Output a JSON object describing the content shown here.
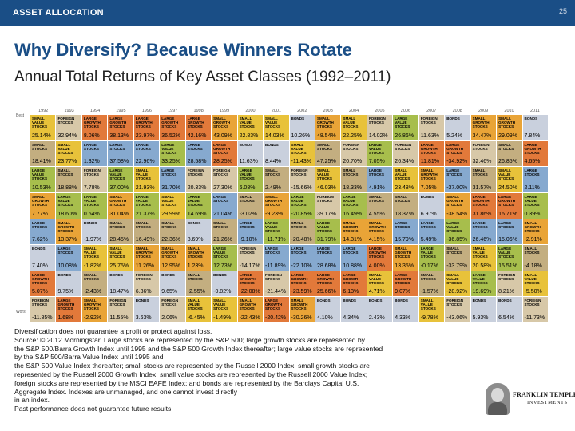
{
  "header": {
    "section_label": "ASSET ALLOCATION",
    "page_number": "25"
  },
  "title": "Why Diversify? Because Winners Rotate",
  "subtitle": "Annual Total Returns of Key Asset Classes (1992–2011)",
  "axis": {
    "best": "Best",
    "worst": "Worst"
  },
  "classes": {
    "SV": {
      "name": "SMALL VALUE STOCKS",
      "color": "#e8c23a"
    },
    "SG": {
      "name": "SMALL GROWTH STOCKS",
      "color": "#e9a437"
    },
    "LV": {
      "name": "LARGE VALUE STOCKS",
      "color": "#a7be4c"
    },
    "LG": {
      "name": "LARGE GROWTH STOCKS",
      "color": "#e2793a"
    },
    "LS": {
      "name": "LARGE STOCKS",
      "color": "#86a9cf"
    },
    "SS": {
      "name": "SMALL STOCKS",
      "color": "#c3ae80"
    },
    "FS": {
      "name": "FOREIGN STOCKS",
      "color": "#d7c8a8"
    },
    "BD": {
      "name": "BONDS",
      "color": "#c9d0dd"
    }
  },
  "chart_data": {
    "type": "table",
    "years": [
      "1992",
      "1993",
      "1994",
      "1995",
      "1996",
      "1997",
      "1998",
      "1999",
      "2000",
      "2001",
      "2002",
      "2003",
      "2004",
      "2005",
      "2006",
      "2007",
      "2008",
      "2009",
      "2010",
      "2011"
    ],
    "columns": [
      [
        [
          "SV",
          "25.14%"
        ],
        [
          "SS",
          "18.41%"
        ],
        [
          "LV",
          "10.53%"
        ],
        [
          "SG",
          "7.77%"
        ],
        [
          "LS",
          "7.62%"
        ],
        [
          "BD",
          "7.40%"
        ],
        [
          "LG",
          "5.07%"
        ],
        [
          "FS",
          "-11.85%"
        ]
      ],
      [
        [
          "FS",
          "32.94%"
        ],
        [
          "SV",
          "23.77%"
        ],
        [
          "SS",
          "18.88%"
        ],
        [
          "LV",
          "18.60%"
        ],
        [
          "SG",
          "13.37%"
        ],
        [
          "LS",
          "10.08%"
        ],
        [
          "BD",
          "9.75%"
        ],
        [
          "LG",
          "1.68%"
        ]
      ],
      [
        [
          "LG",
          "8.06%"
        ],
        [
          "LS",
          "1.32%"
        ],
        [
          "FS",
          "7.78%"
        ],
        [
          "LV",
          "0.64%"
        ],
        [
          "BD",
          "-1.97%"
        ],
        [
          "SV",
          "-1.82%"
        ],
        [
          "SS",
          "-2.43%"
        ],
        [
          "SG",
          "-2.92%"
        ]
      ],
      [
        [
          "LG",
          "38.13%"
        ],
        [
          "LS",
          "37.58%"
        ],
        [
          "LV",
          "37.00%"
        ],
        [
          "SG",
          "31.04%"
        ],
        [
          "SS",
          "28.45%"
        ],
        [
          "SV",
          "25.75%"
        ],
        [
          "BD",
          "18.47%"
        ],
        [
          "FS",
          "11.55%"
        ]
      ],
      [
        [
          "LG",
          "23.97%"
        ],
        [
          "LS",
          "22.96%"
        ],
        [
          "SV",
          "21.93%"
        ],
        [
          "LV",
          "21.37%"
        ],
        [
          "SS",
          "16.49%"
        ],
        [
          "SG",
          "11.26%"
        ],
        [
          "FS",
          "6.36%"
        ],
        [
          "BD",
          "3.63%"
        ]
      ],
      [
        [
          "LG",
          "36.52%"
        ],
        [
          "LV",
          "33.25%"
        ],
        [
          "LS",
          "31.70%"
        ],
        [
          "SV",
          "29.99%"
        ],
        [
          "SS",
          "22.36%"
        ],
        [
          "SG",
          "12.95%"
        ],
        [
          "BD",
          "9.65%"
        ],
        [
          "FS",
          "2.06%"
        ]
      ],
      [
        [
          "LG",
          "42.16%"
        ],
        [
          "LS",
          "28.58%"
        ],
        [
          "FS",
          "20.33%"
        ],
        [
          "LV",
          "14.69%"
        ],
        [
          "BD",
          "8.69%"
        ],
        [
          "SG",
          "1.23%"
        ],
        [
          "SS",
          "-2.55%"
        ],
        [
          "SV",
          "-6.45%"
        ]
      ],
      [
        [
          "SG",
          "43.09%"
        ],
        [
          "LG",
          "28.25%"
        ],
        [
          "FS",
          "27.30%"
        ],
        [
          "LS",
          "21.04%"
        ],
        [
          "SS",
          "21.26%"
        ],
        [
          "LV",
          "12.73%"
        ],
        [
          "BD",
          "-0.82%"
        ],
        [
          "SV",
          "-1.49%"
        ]
      ],
      [
        [
          "SV",
          "22.83%"
        ],
        [
          "BD",
          "11.63%"
        ],
        [
          "LV",
          "6.08%"
        ],
        [
          "SS",
          "-3.02%"
        ],
        [
          "LS",
          "-9.10%"
        ],
        [
          "FS",
          "-14.17%"
        ],
        [
          "LG",
          "-22.08%"
        ],
        [
          "SG",
          "-22.43%"
        ]
      ],
      [
        [
          "SV",
          "14.03%"
        ],
        [
          "BD",
          "8.44%"
        ],
        [
          "SS",
          "2.49%"
        ],
        [
          "SG",
          "-9.23%"
        ],
        [
          "LV",
          "-11.71%"
        ],
        [
          "LS",
          "-11.89%"
        ],
        [
          "FS",
          "-21.44%"
        ],
        [
          "LG",
          "-20.42%"
        ]
      ],
      [
        [
          "BD",
          "10.26%"
        ],
        [
          "SV",
          "-11.43%"
        ],
        [
          "FS",
          "-15.66%"
        ],
        [
          "LV",
          "-20.85%"
        ],
        [
          "SS",
          "-20.48%"
        ],
        [
          "LS",
          "-22.10%"
        ],
        [
          "LG",
          "-23.59%"
        ],
        [
          "SG",
          "-30.26%"
        ]
      ],
      [
        [
          "SG",
          "48.54%"
        ],
        [
          "SS",
          "47.25%"
        ],
        [
          "SV",
          "46.03%"
        ],
        [
          "FS",
          "39.17%"
        ],
        [
          "LV",
          "31.79%"
        ],
        [
          "LS",
          "28.68%"
        ],
        [
          "LG",
          "25.66%"
        ],
        [
          "BD",
          "4.10%"
        ]
      ],
      [
        [
          "SV",
          "22.25%"
        ],
        [
          "FS",
          "20.70%"
        ],
        [
          "SS",
          "18.33%"
        ],
        [
          "LV",
          "16.49%"
        ],
        [
          "SG",
          "14.31%"
        ],
        [
          "LS",
          "10.88%"
        ],
        [
          "LG",
          "6.13%"
        ],
        [
          "BD",
          "4.34%"
        ]
      ],
      [
        [
          "FS",
          "14.02%"
        ],
        [
          "LV",
          "7.05%"
        ],
        [
          "LS",
          "4.91%"
        ],
        [
          "SS",
          "4.55%"
        ],
        [
          "SG",
          "4.15%"
        ],
        [
          "LG",
          "4.00%"
        ],
        [
          "SV",
          "4.71%"
        ],
        [
          "BD",
          "2.43%"
        ]
      ],
      [
        [
          "LV",
          "26.86%"
        ],
        [
          "FS",
          "26.34%"
        ],
        [
          "SV",
          "23.48%"
        ],
        [
          "SS",
          "18.37%"
        ],
        [
          "LS",
          "15.79%"
        ],
        [
          "SG",
          "13.35%"
        ],
        [
          "LG",
          "9.07%"
        ],
        [
          "BD",
          "4.33%"
        ]
      ],
      [
        [
          "FS",
          "11.63%"
        ],
        [
          "LG",
          "11.81%"
        ],
        [
          "SG",
          "7.05%"
        ],
        [
          "BD",
          "6.97%"
        ],
        [
          "LS",
          "5.49%"
        ],
        [
          "LV",
          "-0.17%"
        ],
        [
          "SS",
          "-1.57%"
        ],
        [
          "SV",
          "-9.78%"
        ]
      ],
      [
        [
          "BD",
          "5.24%"
        ],
        [
          "LG",
          "-34.92%"
        ],
        [
          "LS",
          "-37.00%"
        ],
        [
          "SG",
          "-38.54%"
        ],
        [
          "LV",
          "-36.85%"
        ],
        [
          "SS",
          "-33.79%"
        ],
        [
          "SV",
          "-28.92%"
        ],
        [
          "FS",
          "-43.06%"
        ]
      ],
      [
        [
          "SG",
          "34.47%"
        ],
        [
          "FS",
          "32.46%"
        ],
        [
          "SS",
          "31.57%"
        ],
        [
          "LG",
          "31.86%"
        ],
        [
          "LS",
          "26.46%"
        ],
        [
          "SV",
          "20.58%"
        ],
        [
          "LV",
          "19.69%"
        ],
        [
          "BD",
          "5.93%"
        ]
      ],
      [
        [
          "SG",
          "29.09%"
        ],
        [
          "SS",
          "26.85%"
        ],
        [
          "SV",
          "24.50%"
        ],
        [
          "LG",
          "16.71%"
        ],
        [
          "LS",
          "15.06%"
        ],
        [
          "LV",
          "15.51%"
        ],
        [
          "FS",
          "8.21%"
        ],
        [
          "BD",
          "6.54%"
        ]
      ],
      [
        [
          "BD",
          "7.84%"
        ],
        [
          "LG",
          "4.65%"
        ],
        [
          "LS",
          "2.11%"
        ],
        [
          "LV",
          "0.39%"
        ],
        [
          "SG",
          "-2.91%"
        ],
        [
          "SS",
          "-4.18%"
        ],
        [
          "SV",
          "-5.50%"
        ],
        [
          "FS",
          "-11.73%"
        ]
      ]
    ]
  },
  "disclaimer": [
    "Diversification does not guarantee a profit or protect against loss.",
    "Source: © 2012 Morningstar.    Large stocks are represented by the S&P 500;     large growth stocks are represented by",
    "the S&P 500/Barra Growth Index until 1995 and the S&P 500 Growth Index thereafter;     large value stocks are represented",
    "by the S&P 500/Barra Value Index until 1995 and",
    "the S&P 500 Value Index thereafter;    small stocks are represented by the Russell 2000 Index;     small growth stocks are",
    "represented by the Russell 2000 Growth Index;     small value stocks are represented by the Russell 2000 Value Index;",
    "foreign stocks are represented by the MSCI EAFE Index; and      bonds are represented by the Barclays Capital U.S.",
    "Aggregate Index. Indexes are unmanaged, and one cannot invest directly",
    "in an index.",
    "Past performance does not guarantee future results"
  ],
  "logo": {
    "line1": "FRANKLIN TEMPLETON",
    "line2": "INVESTMENTS"
  }
}
